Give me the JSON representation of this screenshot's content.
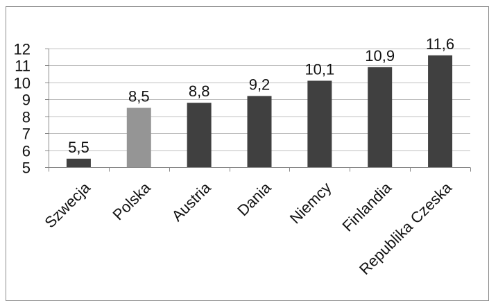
{
  "chart_data": {
    "type": "bar",
    "title": "",
    "xlabel": "",
    "ylabel": "",
    "categories": [
      "Szwecja",
      "Polska",
      "Austria",
      "Dania",
      "Niemcy",
      "Finlandia",
      "Republika Czeska"
    ],
    "values": [
      5.5,
      8.5,
      8.8,
      9.2,
      10.1,
      10.9,
      11.6
    ],
    "value_labels": [
      "5,5",
      "8,5",
      "8,8",
      "9,2",
      "10,1",
      "10,9",
      "11,6"
    ],
    "yticks": [
      "5",
      "6",
      "7",
      "8",
      "9",
      "10",
      "11",
      "12"
    ],
    "ylim": [
      5,
      12
    ],
    "grid": true,
    "legend": "none",
    "colors": {
      "bar": "#404040",
      "highlight": "#959595",
      "grid": "#bfbfbf",
      "axis": "#888888",
      "frame": "#8c8c8c"
    },
    "highlight_category": "Polska"
  }
}
